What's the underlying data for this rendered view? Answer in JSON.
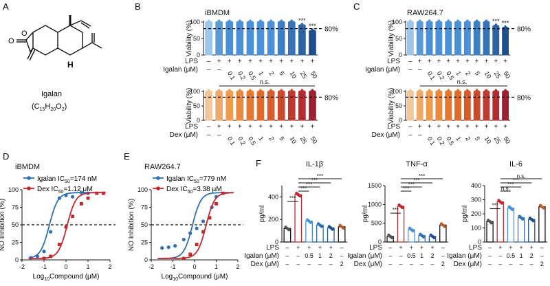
{
  "panel_letters": {
    "a": "A",
    "b": "B",
    "c": "C",
    "d": "D",
    "e": "E",
    "f": "F"
  },
  "structure": {
    "name": "Igalan",
    "formula": "(C15H20O2)",
    "formula_parts": [
      "(C",
      "15",
      "H",
      "20",
      "O",
      "2",
      ")"
    ],
    "atom_o": "O",
    "atom_o2": "O",
    "atom_h": "H"
  },
  "common": {
    "viability_label": "Viability (%)",
    "lps_label": "LPS",
    "igalan_label": "Igalan (μM)",
    "dex_label": "Dex (μM)",
    "dose_ticks": [
      "0.1",
      "0.2",
      "0.5",
      "1",
      "2",
      "5",
      "10",
      "25",
      "50"
    ],
    "lps_row": [
      "–",
      "+",
      "+",
      "+",
      "+",
      "+",
      "+",
      "+",
      "+",
      "+",
      "+"
    ],
    "dose_row_first": [
      "–",
      "–"
    ],
    "ns": "n.s.",
    "threshold_label": "80%",
    "sig": "***",
    "no_label": "NO Inhibition (%)",
    "log_label": "Log10Compound (μM)",
    "log_label_parts": [
      "Log",
      "10",
      "Compound (μM)"
    ]
  },
  "chart_data": [
    {
      "id": "B_top",
      "type": "bar",
      "title": "iBMDM",
      "ylabel": "Viability (%)",
      "ylim": [
        0,
        100
      ],
      "yticks": [
        0,
        50,
        100
      ],
      "threshold": 80,
      "categories": [
        "ctrl",
        "LPS",
        "0.1",
        "0.2",
        "0.5",
        "1",
        "2",
        "5",
        "10",
        "25",
        "50"
      ],
      "values": [
        100,
        100,
        100,
        100,
        100,
        100,
        100,
        100,
        100,
        90,
        73
      ],
      "significance": [
        "",
        "",
        "",
        "",
        "",
        "",
        "",
        "",
        "",
        "***",
        "***"
      ],
      "palette": "blue"
    },
    {
      "id": "B_bottom",
      "type": "bar",
      "ylabel": "Viability (%)",
      "ylim": [
        0,
        100
      ],
      "yticks": [
        0,
        50,
        100
      ],
      "threshold": 80,
      "categories": [
        "ctrl",
        "LPS",
        "0.1",
        "0.2",
        "0.5",
        "1",
        "2",
        "5",
        "10",
        "25",
        "50"
      ],
      "values": [
        100,
        100,
        100,
        100,
        100,
        100,
        100,
        100,
        100,
        100,
        100
      ],
      "significance": [
        "",
        "",
        "",
        "",
        "",
        "",
        "",
        "",
        "",
        "",
        ""
      ],
      "palette": "orange"
    },
    {
      "id": "C_top",
      "type": "bar",
      "title": "RAW264.7",
      "ylabel": "Viability (%)",
      "ylim": [
        0,
        100
      ],
      "yticks": [
        0,
        50,
        100
      ],
      "threshold": 80,
      "categories": [
        "ctrl",
        "LPS",
        "0.1",
        "0.2",
        "0.5",
        "1",
        "2",
        "5",
        "10",
        "25",
        "50"
      ],
      "values": [
        100,
        100,
        100,
        100,
        100,
        100,
        100,
        100,
        100,
        88,
        82
      ],
      "significance": [
        "",
        "",
        "",
        "",
        "",
        "",
        "",
        "",
        "",
        "***",
        "***"
      ],
      "palette": "blue"
    },
    {
      "id": "C_bottom",
      "type": "bar",
      "ylabel": "Viability (%)",
      "ylim": [
        0,
        100
      ],
      "yticks": [
        0,
        50,
        100
      ],
      "threshold": 80,
      "categories": [
        "ctrl",
        "LPS",
        "0.1",
        "0.2",
        "0.5",
        "1",
        "2",
        "5",
        "10",
        "25",
        "50"
      ],
      "values": [
        100,
        100,
        100,
        100,
        100,
        100,
        100,
        100,
        100,
        100,
        100
      ],
      "significance": [
        "",
        "",
        "",
        "",
        "",
        "",
        "",
        "",
        "",
        "",
        ""
      ],
      "palette": "orange"
    },
    {
      "id": "D",
      "type": "scatter",
      "title": "iBMDM",
      "xlabel": "Log10Compound (μM)",
      "ylabel": "NO Inhibition (%)",
      "xlim": [
        -2,
        2
      ],
      "ylim": [
        0,
        100
      ],
      "xticks": [
        -2,
        -1,
        0,
        1,
        2
      ],
      "yticks": [
        0,
        25,
        50,
        75,
        100
      ],
      "reference_line": 50,
      "series": [
        {
          "name": "Igalan IC50=174 nM",
          "name_parts": [
            "Igalan IC",
            "50",
            "=174 nM"
          ],
          "color": "#2f6fb5",
          "x": [
            -1.6,
            -1.3,
            -1.0,
            -0.7,
            -0.3,
            0.0,
            0.3,
            0.7,
            1.0
          ],
          "y": [
            3,
            5,
            12,
            40,
            88,
            92,
            90,
            96,
            95
          ],
          "ic50_log": -0.76
        },
        {
          "name": "Dex IC50=1.12 μM",
          "name_parts": [
            "Dex IC",
            "50",
            "=1.12 μM"
          ],
          "color": "#c0282d",
          "x": [
            -1.0,
            -0.7,
            -0.3,
            0.0,
            0.3,
            0.7,
            1.0,
            1.4,
            1.7
          ],
          "y": [
            2,
            5,
            22,
            47,
            62,
            80,
            88,
            95,
            95
          ],
          "ic50_log": 0.05
        }
      ]
    },
    {
      "id": "E",
      "type": "scatter",
      "title": "RAW264.7",
      "xlabel": "Log10Compound (μM)",
      "ylabel": "NO Inhibition (%)",
      "xlim": [
        -2,
        2
      ],
      "ylim": [
        0,
        100
      ],
      "xticks": [
        -2,
        -1,
        0,
        1,
        2
      ],
      "yticks": [
        0,
        25,
        50,
        75,
        100
      ],
      "reference_line": 50,
      "series": [
        {
          "name": "Igalan IC50=779 nM",
          "name_parts": [
            "Igalan IC",
            "50",
            "=779 nM"
          ],
          "color": "#2f6fb5",
          "x": [
            -1.5,
            -1.2,
            -0.9,
            -0.5,
            -0.2,
            0.1,
            0.4,
            0.8,
            1.0
          ],
          "y": [
            17,
            18,
            20,
            29,
            38,
            45,
            55,
            75,
            90
          ],
          "ic50_log": -0.1
        },
        {
          "name": "Dex IC50=3.38 μM",
          "name_parts": [
            "Dex IC",
            "50",
            "=3.38 μM"
          ],
          "color": "#c0282d",
          "x": [
            -0.5,
            -0.2,
            0.1,
            0.4,
            0.7,
            1.0,
            1.3
          ],
          "y": [
            2,
            8,
            22,
            40,
            60,
            80,
            95
          ],
          "ic50_log": 0.53
        }
      ]
    },
    {
      "id": "F_IL1b",
      "type": "bar",
      "title": "IL-1β",
      "ylabel": "pg/ml",
      "ylim": [
        0,
        500
      ],
      "yticks": [
        0,
        200,
        400
      ],
      "values": [
        120,
        420,
        185,
        150,
        125,
        135
      ],
      "significance_brackets": [
        "***",
        "***",
        "***",
        "***",
        "***"
      ]
    },
    {
      "id": "F_TNFa",
      "type": "bar",
      "title": "TNF-α",
      "ylabel": "pg/ml",
      "ylim": [
        0,
        1500
      ],
      "yticks": [
        0,
        500,
        1000,
        1500
      ],
      "values": [
        150,
        950,
        330,
        170,
        150,
        450
      ],
      "significance_brackets": [
        "***",
        "***",
        "***",
        "***",
        "***"
      ]
    },
    {
      "id": "F_IL6",
      "type": "bar",
      "title": "IL-6",
      "ylabel": "pg/ml",
      "ylim": [
        0,
        400
      ],
      "yticks": [
        0,
        100,
        200,
        300,
        400
      ],
      "values": [
        145,
        285,
        240,
        172,
        160,
        250
      ],
      "significance_brackets": [
        "***",
        "n.s.",
        "***",
        "***",
        "n.s."
      ]
    }
  ],
  "f_rows": {
    "lps": [
      "–",
      "+",
      "+",
      "+",
      "+",
      "–"
    ],
    "igalan": [
      "–",
      "–",
      "0.5",
      "1",
      "2",
      "–"
    ],
    "dex": [
      "–",
      "–",
      "–",
      "–",
      "–",
      "2"
    ]
  }
}
